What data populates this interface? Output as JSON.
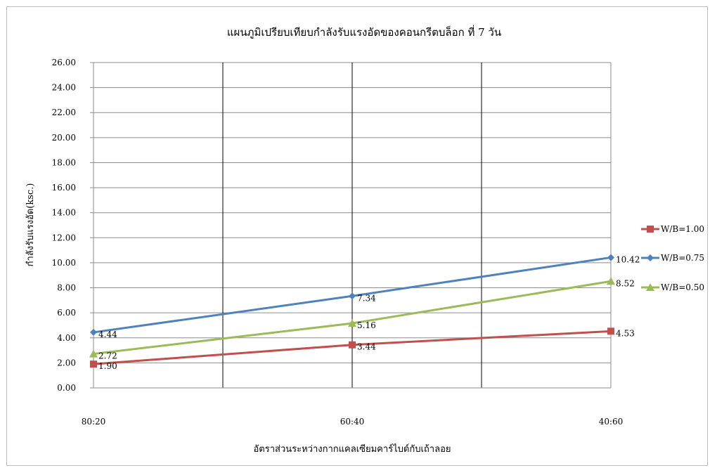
{
  "chart_data": {
    "type": "line",
    "title": "แผนภูมิเปรียบเทียบกำลังรับแรงอัดของคอนกรีตบล็อก ที่ 7 วัน",
    "xlabel": "อัตราส่วนระหว่างกากแคลเซียมคาร์ไบด์กับเถ้าลอย",
    "ylabel": "กำลังรับแรงอัด(ksc.)",
    "categories": [
      "80:20",
      "60:40",
      "40:60"
    ],
    "ylim": [
      0,
      26
    ],
    "ytick_step": 2,
    "ytick_labels": [
      "0.00",
      "2.00",
      "4.00",
      "6.00",
      "8.00",
      "10.00",
      "12.00",
      "14.00",
      "16.00",
      "18.00",
      "20.00",
      "22.00",
      "24.00",
      "26.00"
    ],
    "grid": {
      "horizontal": true,
      "vertical": true
    },
    "legend_position": "right",
    "series": [
      {
        "name": "W/B=1.00",
        "values": [
          1.9,
          3.44,
          4.53
        ],
        "labels": [
          "1.90",
          "3.44",
          "4.53"
        ],
        "color": "#c0504d",
        "marker": "square"
      },
      {
        "name": "W/B=0.75",
        "values": [
          4.44,
          7.34,
          10.42
        ],
        "labels": [
          "4.44",
          "7.34",
          "10.42"
        ],
        "color": "#4f81bd",
        "marker": "diamond"
      },
      {
        "name": "W/B=0.50",
        "values": [
          2.72,
          5.16,
          8.52
        ],
        "labels": [
          "2.72",
          "5.16",
          "8.52"
        ],
        "color": "#9bbb59",
        "marker": "triangle"
      }
    ]
  }
}
